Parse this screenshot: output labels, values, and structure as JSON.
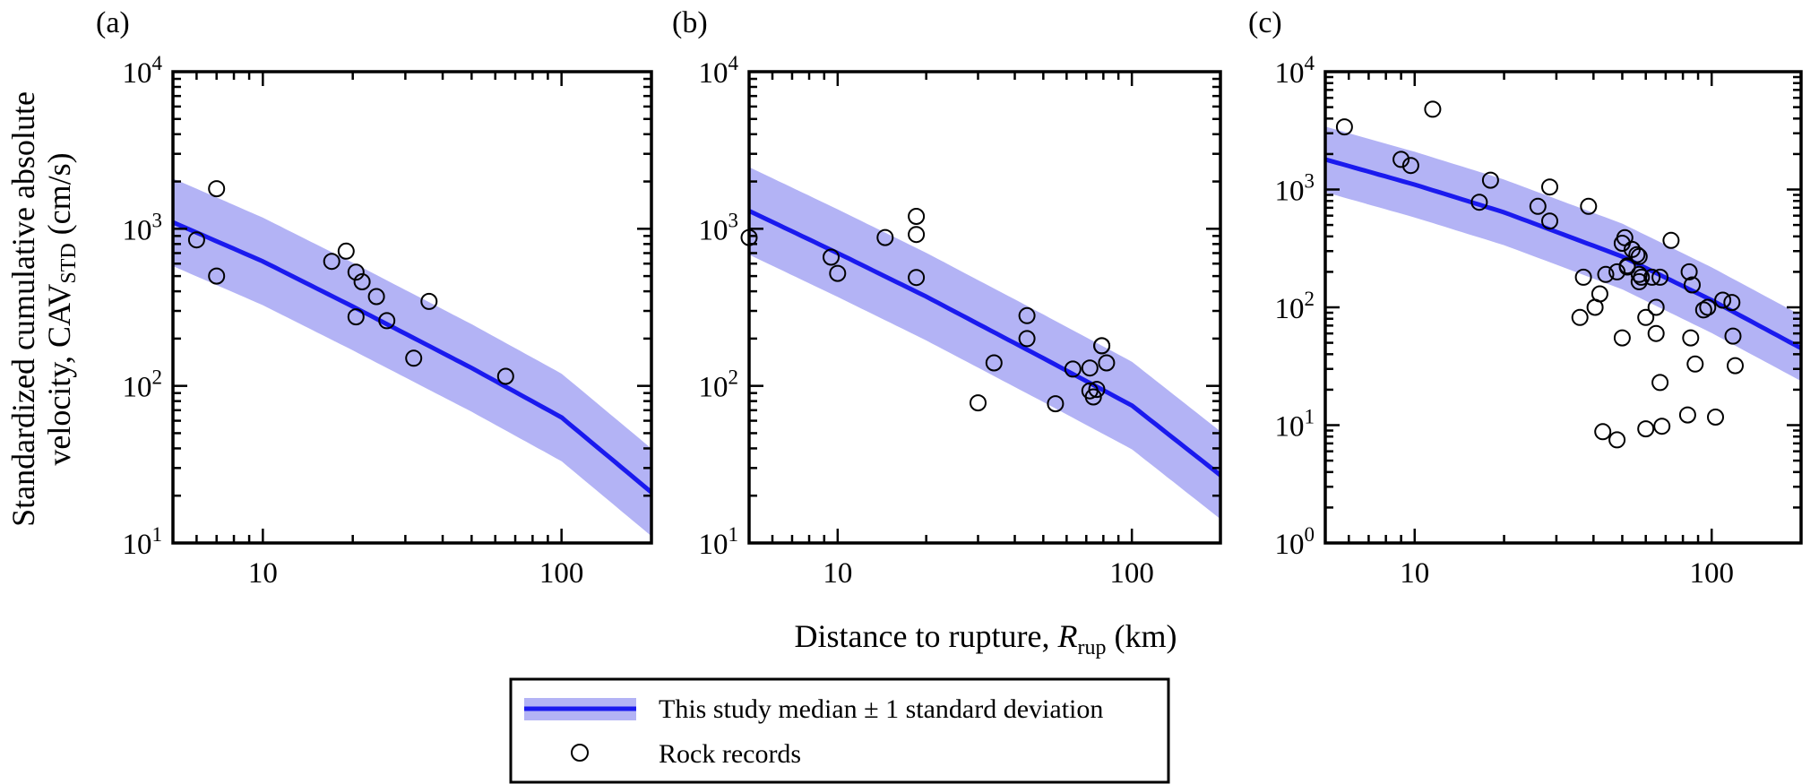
{
  "figure": {
    "ylabel_line1": "Standardized cumulative absolute",
    "ylabel_line2_pre": "velocity, CAV",
    "ylabel_line2_sub": "STD",
    "ylabel_line2_post": " (cm/s)",
    "xlabel_pre": "Distance to rupture, ",
    "xlabel_var": "R",
    "xlabel_sub": "rup",
    "xlabel_post": " (km)"
  },
  "legend": {
    "placement": "bottom-center",
    "entries": [
      {
        "label": "This study median ± 1 standard deviation",
        "kind": "line-band"
      },
      {
        "label": "Rock records",
        "kind": "marker"
      }
    ]
  },
  "colors": {
    "median_line": "#1a1aee",
    "band_fill": "#b3b3f5",
    "axis": "#000000",
    "marker_edge": "#000000"
  },
  "chart_data": [
    {
      "type": "scatter",
      "panel_label": "(a)",
      "x_scale": "log",
      "y_scale": "log",
      "xlim": [
        5,
        200
      ],
      "ylim": [
        10,
        10000
      ],
      "x_ticks": [
        {
          "value": 10,
          "label": "10"
        },
        {
          "value": 100,
          "label": "100"
        }
      ],
      "y_ticks": [
        {
          "value": 10,
          "base": "10",
          "exp": "1"
        },
        {
          "value": 100,
          "base": "10",
          "exp": "2"
        },
        {
          "value": 1000,
          "base": "10",
          "exp": "3"
        },
        {
          "value": 10000,
          "base": "10",
          "exp": "4"
        }
      ],
      "median": [
        [
          5,
          1100
        ],
        [
          10,
          620
        ],
        [
          20,
          320
        ],
        [
          50,
          130
        ],
        [
          100,
          63
        ],
        [
          200,
          21
        ]
      ],
      "sigma_factor": 1.9,
      "points": [
        [
          6,
          850
        ],
        [
          7,
          1800
        ],
        [
          7,
          500
        ],
        [
          17,
          620
        ],
        [
          19,
          720
        ],
        [
          20.5,
          530
        ],
        [
          21.5,
          460
        ],
        [
          20.5,
          275
        ],
        [
          24,
          370
        ],
        [
          26,
          260
        ],
        [
          32,
          150
        ],
        [
          36,
          345
        ],
        [
          65,
          115
        ]
      ]
    },
    {
      "type": "scatter",
      "panel_label": "(b)",
      "x_scale": "log",
      "y_scale": "log",
      "xlim": [
        5,
        200
      ],
      "ylim": [
        10,
        10000
      ],
      "x_ticks": [
        {
          "value": 10,
          "label": "10"
        },
        {
          "value": 100,
          "label": "100"
        }
      ],
      "y_ticks": [
        {
          "value": 10,
          "base": "10",
          "exp": "1"
        },
        {
          "value": 100,
          "base": "10",
          "exp": "2"
        },
        {
          "value": 1000,
          "base": "10",
          "exp": "3"
        },
        {
          "value": 10000,
          "base": "10",
          "exp": "4"
        }
      ],
      "median": [
        [
          5,
          1300
        ],
        [
          10,
          700
        ],
        [
          20,
          370
        ],
        [
          50,
          150
        ],
        [
          100,
          75
        ],
        [
          200,
          27
        ]
      ],
      "sigma_factor": 1.9,
      "points": [
        [
          5,
          880
        ],
        [
          9.5,
          660
        ],
        [
          10,
          520
        ],
        [
          14.5,
          880
        ],
        [
          18.5,
          1200
        ],
        [
          18.5,
          920
        ],
        [
          18.5,
          490
        ],
        [
          30,
          78
        ],
        [
          34,
          140
        ],
        [
          44,
          280
        ],
        [
          44,
          200
        ],
        [
          55,
          77
        ],
        [
          63,
          128
        ],
        [
          72,
          130
        ],
        [
          72,
          93
        ],
        [
          74,
          85
        ],
        [
          76,
          95
        ],
        [
          79,
          180
        ],
        [
          79,
          180
        ],
        [
          82,
          140
        ]
      ]
    },
    {
      "type": "scatter",
      "panel_label": "(c)",
      "x_scale": "log",
      "y_scale": "log",
      "xlim": [
        5,
        200
      ],
      "ylim": [
        1,
        10000
      ],
      "x_ticks": [
        {
          "value": 10,
          "label": "10"
        },
        {
          "value": 100,
          "label": "100"
        }
      ],
      "y_ticks": [
        {
          "value": 1,
          "base": "10",
          "exp": "0"
        },
        {
          "value": 10,
          "base": "10",
          "exp": "1"
        },
        {
          "value": 100,
          "base": "10",
          "exp": "2"
        },
        {
          "value": 1000,
          "base": "10",
          "exp": "3"
        },
        {
          "value": 10000,
          "base": "10",
          "exp": "4"
        }
      ],
      "median": [
        [
          5,
          1800
        ],
        [
          10,
          1100
        ],
        [
          20,
          640
        ],
        [
          50,
          270
        ],
        [
          100,
          115
        ],
        [
          200,
          45
        ]
      ],
      "sigma_factor": 1.9,
      "points": [
        [
          5.8,
          3400
        ],
        [
          9,
          1800
        ],
        [
          9.7,
          1600
        ],
        [
          11.5,
          4800
        ],
        [
          16.5,
          780
        ],
        [
          18,
          1200
        ],
        [
          26,
          720
        ],
        [
          28.5,
          540
        ],
        [
          28.5,
          1050
        ],
        [
          36,
          82
        ],
        [
          37,
          180
        ],
        [
          38.5,
          720
        ],
        [
          40.5,
          100
        ],
        [
          42,
          130
        ],
        [
          43,
          8.8
        ],
        [
          44,
          190
        ],
        [
          48,
          7.5
        ],
        [
          48,
          200
        ],
        [
          50,
          55
        ],
        [
          50,
          350
        ],
        [
          51,
          390
        ],
        [
          52,
          220
        ],
        [
          52,
          225
        ],
        [
          54,
          310
        ],
        [
          56,
          280
        ],
        [
          57,
          270
        ],
        [
          57,
          165
        ],
        [
          57,
          190
        ],
        [
          58,
          180
        ],
        [
          60,
          9.3
        ],
        [
          60,
          82
        ],
        [
          63,
          180
        ],
        [
          65,
          60
        ],
        [
          65,
          100
        ],
        [
          67,
          180
        ],
        [
          67,
          23
        ],
        [
          68,
          9.8
        ],
        [
          73,
          370
        ],
        [
          83,
          12.2
        ],
        [
          84,
          200
        ],
        [
          85,
          55
        ],
        [
          86,
          155
        ],
        [
          88,
          33
        ],
        [
          94,
          95
        ],
        [
          97,
          100
        ],
        [
          103,
          11.7
        ],
        [
          109,
          115
        ],
        [
          117,
          110
        ],
        [
          118,
          57
        ],
        [
          120,
          32
        ]
      ]
    }
  ]
}
